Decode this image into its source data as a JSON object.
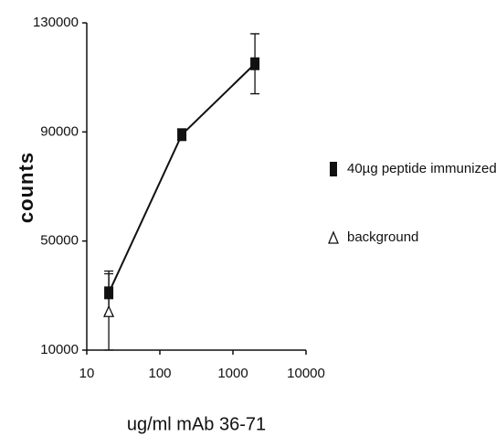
{
  "chart_data": {
    "type": "line",
    "xlabel": "ug/ml mAb 36-71",
    "ylabel": "counts",
    "xscale": "log",
    "xlim": [
      10,
      10000
    ],
    "xticks": [
      10,
      100,
      1000,
      10000
    ],
    "ylim": [
      10000,
      130000
    ],
    "yticks": [
      10000,
      50000,
      90000,
      130000
    ],
    "series": [
      {
        "name": "40µg peptide immunized",
        "color": "#111111",
        "marker": "square",
        "x": [
          20,
          200,
          2000
        ],
        "values": [
          31000,
          89000,
          115000
        ],
        "errors": [
          8000,
          2000,
          11000
        ]
      },
      {
        "name": "background",
        "color": "#111111",
        "marker": "triangle",
        "x": [
          20
        ],
        "values": [
          24000
        ],
        "errors": [
          14000
        ]
      }
    ]
  }
}
